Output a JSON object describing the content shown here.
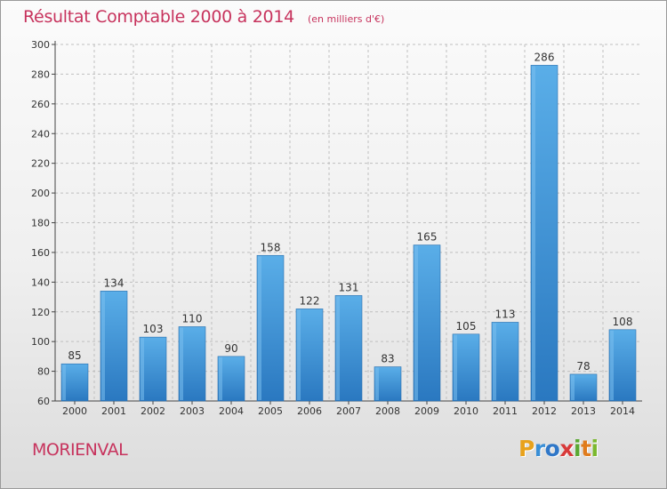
{
  "chart_data": {
    "type": "bar",
    "title": "Résultat Comptable 2000 à 2014",
    "subtitle": "(en milliers d'€)",
    "categories": [
      "2000",
      "2001",
      "2002",
      "2003",
      "2004",
      "2005",
      "2006",
      "2007",
      "2008",
      "2009",
      "2010",
      "2011",
      "2012",
      "2013",
      "2014"
    ],
    "values": [
      85,
      134,
      103,
      110,
      90,
      158,
      122,
      131,
      83,
      165,
      105,
      113,
      286,
      78,
      108
    ],
    "ylim": [
      60,
      300
    ],
    "yticks": [
      60,
      80,
      100,
      120,
      140,
      160,
      180,
      200,
      220,
      240,
      260,
      280,
      300
    ],
    "grid": true,
    "bar_color": "#3f95d8",
    "bar_color_light": "#5aaee8",
    "bar_color_dark": "#2a78c0"
  },
  "commune": "MORIENVAL",
  "logo": {
    "text": "Proxiti",
    "letters": [
      "P",
      "r",
      "o",
      "x",
      "i",
      "t",
      "i"
    ],
    "colors": [
      "#e8a21c",
      "#3a8fd6",
      "#2f77c8",
      "#d83a3a",
      "#5aa832",
      "#e07b1c",
      "#7bb92e"
    ]
  },
  "colors": {
    "accent": "#c7335d",
    "axis": "#444444",
    "grid": "#bfbfbf"
  }
}
